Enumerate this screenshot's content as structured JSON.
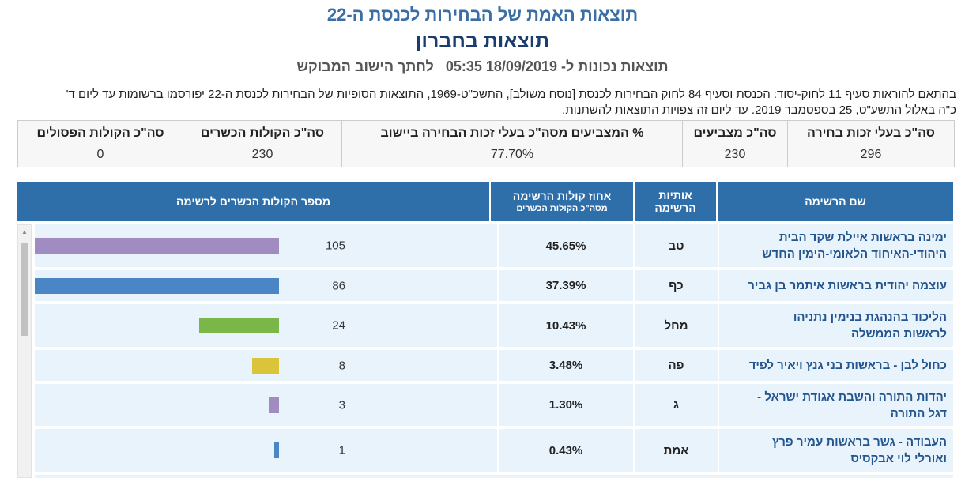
{
  "header": {
    "title": "תוצאות האמת של הבחירות לכנסת ה-22",
    "city_title": "תוצאות בחברון",
    "subtitle_prefix": "תוצאות נכונות ל-",
    "timestamp": "18/09/2019  05:35",
    "subtitle_link": "לחתך הישוב המבוקש"
  },
  "legal_text": "בהתאם להוראות סעיף 11 לחוק-יסוד: הכנסת וסעיף 84 לחוק הבחירות לכנסת [נוסח משולב], התשכ\"ט-1969, התוצאות הסופיות של הבחירות לכנסת ה-22 יפורסמו ברשומות עד ליום ד' כ\"ה באלול התשע\"ט, 25 בספטמבר 2019. עד ליום זה צפויות התוצאות להשתנות.",
  "summary": [
    {
      "label": "סה\"כ בעלי זכות בחירה",
      "value": "296"
    },
    {
      "label": "סה\"כ מצביעים",
      "value": "230"
    },
    {
      "label": "% המצביעים מסה\"כ בעלי זכות הבחירה ביישוב",
      "value": "77.70%"
    },
    {
      "label": "סה\"כ הקולות הכשרים",
      "value": "230"
    },
    {
      "label": "סה\"כ הקולות הפסולים",
      "value": "0"
    }
  ],
  "table_headers": {
    "name": "שם הרשימה",
    "letters_line1": "אותיות",
    "letters_line2": "הרשימה",
    "pct_line1": "אחוז קולות הרשימה",
    "pct_line2": "מסה\"כ הקולות הכשרים",
    "votes": "מספר הקולות הכשרים לרשימה"
  },
  "colors": {
    "header_blue": "#2e6ea9",
    "row_bg": "#e9f3fb",
    "name_blue": "#23558f"
  },
  "rows": [
    {
      "name_line1": "ימינה בראשות איילת שקד הבית",
      "name_line2": "היהודי-האיחוד הלאומי-הימין החדש",
      "letter": "טב",
      "pct": "45.65%",
      "votes": "105",
      "color": "#a08cc0"
    },
    {
      "name_line1": "עוצמה יהודית בראשות איתמר בן גביר",
      "name_line2": "",
      "letter": "כף",
      "pct": "37.39%",
      "votes": "86",
      "color": "#4a85c5"
    },
    {
      "name_line1": "הליכוד בהנהגת בנימין נתניהו",
      "name_line2": "לראשות הממשלה",
      "letter": "מחל",
      "pct": "10.43%",
      "votes": "24",
      "color": "#7ab648"
    },
    {
      "name_line1": "כחול לבן - בראשות בני גנץ ויאיר לפיד",
      "name_line2": "",
      "letter": "פה",
      "pct": "3.48%",
      "votes": "8",
      "color": "#d9c43a"
    },
    {
      "name_line1": "יהדות התורה והשבת אגודת ישראל -",
      "name_line2": "דגל התורה",
      "letter": "ג",
      "pct": "1.30%",
      "votes": "3",
      "color": "#a08cc0"
    },
    {
      "name_line1": "העבודה - גשר בראשות עמיר פרץ",
      "name_line2": "ואורלי לוי אבקסיס",
      "letter": "אמת",
      "pct": "0.43%",
      "votes": "1",
      "color": "#4a85c5"
    }
  ]
}
